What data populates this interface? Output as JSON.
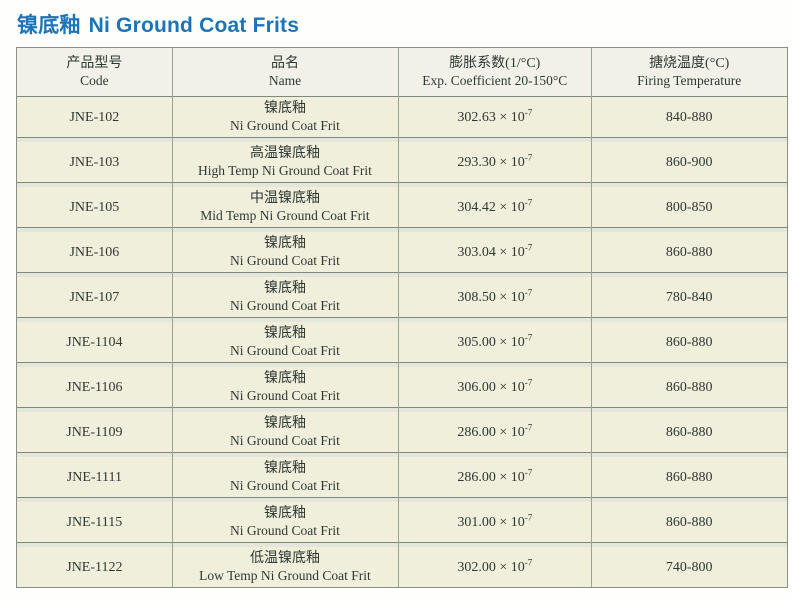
{
  "page_title": {
    "cn": "镍底釉",
    "en": "Ni Ground Coat Frits"
  },
  "colors": {
    "title_blue": "#1c74b8",
    "cell_background": "#f0efdc",
    "header_background": "#f1f1ea",
    "separator_dark": "#7e897b",
    "grid_line": "#99a193",
    "outer_border": "#8a9086"
  },
  "table": {
    "headers": [
      {
        "cn": "产品型号",
        "en": "Code"
      },
      {
        "cn": "品名",
        "en": "Name"
      },
      {
        "cn": "膨胀系数(1/°C)",
        "en": "Exp. Coefficient 20-150°C"
      },
      {
        "cn": "搪烧温度(°C)",
        "en": "Firing Temperature"
      }
    ],
    "rows": [
      {
        "code": "JNE-102",
        "name_cn": "镍底釉",
        "name_en": "Ni Ground Coat Frit",
        "coeff": "302.63 × 10",
        "coeff_exp": "-7",
        "firing": "840-880"
      },
      {
        "code": "JNE-103",
        "name_cn": "高温镍底釉",
        "name_en": "High Temp Ni Ground Coat Frit",
        "coeff": "293.30 × 10",
        "coeff_exp": "-7",
        "firing": "860-900"
      },
      {
        "code": "JNE-105",
        "name_cn": "中温镍底釉",
        "name_en": "Mid Temp Ni Ground Coat Frit",
        "coeff": "304.42 × 10",
        "coeff_exp": "-7",
        "firing": "800-850"
      },
      {
        "code": "JNE-106",
        "name_cn": "镍底釉",
        "name_en": "Ni Ground Coat Frit",
        "coeff": "303.04 × 10",
        "coeff_exp": "-7",
        "firing": "860-880"
      },
      {
        "code": "JNE-107",
        "name_cn": "镍底釉",
        "name_en": "Ni Ground Coat Frit",
        "coeff": "308.50 × 10",
        "coeff_exp": "-7",
        "firing": "780-840"
      },
      {
        "code": "JNE-1104",
        "name_cn": "镍底釉",
        "name_en": "Ni Ground Coat Frit",
        "coeff": "305.00 × 10",
        "coeff_exp": "-7",
        "firing": "860-880"
      },
      {
        "code": "JNE-1106",
        "name_cn": "镍底釉",
        "name_en": "Ni Ground Coat Frit",
        "coeff": "306.00 × 10",
        "coeff_exp": "-7",
        "firing": "860-880"
      },
      {
        "code": "JNE-1109",
        "name_cn": "镍底釉",
        "name_en": "Ni Ground Coat Frit",
        "coeff": "286.00 × 10",
        "coeff_exp": "-7",
        "firing": "860-880"
      },
      {
        "code": "JNE-1111",
        "name_cn": "镍底釉",
        "name_en": "Ni Ground Coat Frit",
        "coeff": "286.00 × 10",
        "coeff_exp": "-7",
        "firing": "860-880"
      },
      {
        "code": "JNE-1115",
        "name_cn": "镍底釉",
        "name_en": "Ni Ground Coat Frit",
        "coeff": "301.00 × 10",
        "coeff_exp": "-7",
        "firing": "860-880"
      },
      {
        "code": "JNE-1122",
        "name_cn": "低温镍底釉",
        "name_en": "Low Temp Ni Ground Coat Frit",
        "coeff": "302.00 × 10",
        "coeff_exp": "-7",
        "firing": "740-800"
      }
    ]
  }
}
